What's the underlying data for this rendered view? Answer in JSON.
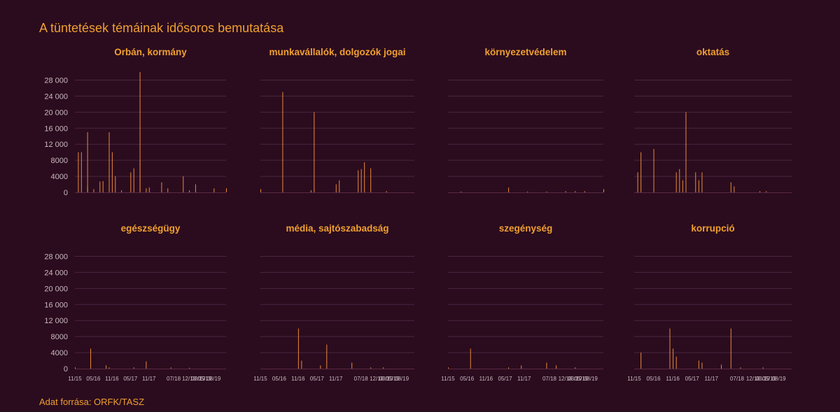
{
  "title": "A tüntetések témáinak idősoros bemutatása",
  "source": "Adat forrása: ORFK/TASZ",
  "colors": {
    "background": "#2b0c1e",
    "accent": "#f0a030",
    "bar": "#e8893a",
    "grid": "#4a2540",
    "tick": "#c8b8c0"
  },
  "chart_data": {
    "type": "bar",
    "y_ticks": [
      "0",
      "4000",
      "8000",
      "12 000",
      "16 000",
      "20 000",
      "24 000",
      "28 000"
    ],
    "y_tick_values": [
      0,
      4000,
      8000,
      12000,
      16000,
      20000,
      24000,
      28000
    ],
    "ylim": [
      0,
      30000
    ],
    "x_range": [
      "2015-11",
      "2019-12"
    ],
    "x_ticks": [
      {
        "label": "11/15",
        "date": "2015-11"
      },
      {
        "label": "05/16",
        "date": "2016-05"
      },
      {
        "label": "11/16",
        "date": "2016-11"
      },
      {
        "label": "05/17",
        "date": "2017-05"
      },
      {
        "label": "11/17",
        "date": "2017-11"
      },
      {
        "label": "07/18",
        "date": "2018-07"
      },
      {
        "label": "12/18",
        "date": "2018-12"
      },
      {
        "label": "03/19",
        "date": "2019-03"
      },
      {
        "label": "05/19",
        "date": "2019-05"
      },
      {
        "label": "08/19",
        "date": "2019-08"
      }
    ],
    "grid": true,
    "panels": [
      {
        "title": "Orbán, kormány",
        "points": [
          [
            "2015-12",
            10000
          ],
          [
            "2016-01",
            10000
          ],
          [
            "2016-03",
            15000
          ],
          [
            "2016-03",
            1500
          ],
          [
            "2016-05",
            800
          ],
          [
            "2016-07",
            2700
          ],
          [
            "2016-08",
            2800
          ],
          [
            "2016-10",
            10200
          ],
          [
            "2016-10",
            15000
          ],
          [
            "2016-11",
            10000
          ],
          [
            "2016-12",
            4000
          ],
          [
            "2017-02",
            500
          ],
          [
            "2017-05",
            5000
          ],
          [
            "2017-06",
            6000
          ],
          [
            "2017-08",
            8000
          ],
          [
            "2017-08",
            30000
          ],
          [
            "2017-10",
            1000
          ],
          [
            "2017-11",
            1200
          ],
          [
            "2018-03",
            2500
          ],
          [
            "2018-05",
            1000
          ],
          [
            "2018-10",
            4000
          ],
          [
            "2018-12",
            500
          ],
          [
            "2019-02",
            2000
          ],
          [
            "2019-08",
            1000
          ],
          [
            "2019-12",
            1000
          ]
        ]
      },
      {
        "title": "munkavállalók, dolgozók jogai",
        "points": [
          [
            "2015-11",
            800
          ],
          [
            "2016-06",
            25000
          ],
          [
            "2017-03",
            500
          ],
          [
            "2017-04",
            20000
          ],
          [
            "2017-11",
            2000
          ],
          [
            "2017-12",
            3000
          ],
          [
            "2018-06",
            5500
          ],
          [
            "2018-07",
            5800
          ],
          [
            "2018-08",
            7500
          ],
          [
            "2018-10",
            6000
          ],
          [
            "2019-03",
            300
          ]
        ]
      },
      {
        "title": "környezetvédelem",
        "points": [
          [
            "2016-03",
            200
          ],
          [
            "2017-06",
            1200
          ],
          [
            "2017-12",
            200
          ],
          [
            "2018-06",
            200
          ],
          [
            "2018-12",
            300
          ],
          [
            "2019-03",
            300
          ],
          [
            "2019-06",
            300
          ],
          [
            "2019-12",
            800
          ]
        ]
      },
      {
        "title": "oktatás",
        "points": [
          [
            "2015-12",
            5000
          ],
          [
            "2016-01",
            10000
          ],
          [
            "2016-05",
            10800
          ],
          [
            "2016-12",
            5000
          ],
          [
            "2017-01",
            5800
          ],
          [
            "2017-02",
            3000
          ],
          [
            "2017-03",
            20000
          ],
          [
            "2017-06",
            5000
          ],
          [
            "2017-07",
            3000
          ],
          [
            "2017-08",
            5000
          ],
          [
            "2018-05",
            2500
          ],
          [
            "2018-06",
            1500
          ],
          [
            "2019-02",
            300
          ],
          [
            "2019-04",
            300
          ]
        ]
      },
      {
        "title": "egészségügy",
        "points": [
          [
            "2015-11",
            300
          ],
          [
            "2016-04",
            5000
          ],
          [
            "2016-09",
            800
          ],
          [
            "2016-10",
            300
          ],
          [
            "2017-06",
            300
          ],
          [
            "2017-10",
            1800
          ],
          [
            "2018-06",
            300
          ],
          [
            "2018-12",
            200
          ]
        ]
      },
      {
        "title": "média, sajtószabadság",
        "points": [
          [
            "2016-11",
            10000
          ],
          [
            "2016-12",
            2000
          ],
          [
            "2017-06",
            800
          ],
          [
            "2017-08",
            6000
          ],
          [
            "2018-04",
            1500
          ],
          [
            "2018-10",
            300
          ],
          [
            "2019-02",
            300
          ]
        ]
      },
      {
        "title": "szegénység",
        "points": [
          [
            "2015-11",
            300
          ],
          [
            "2016-06",
            5000
          ],
          [
            "2017-06",
            300
          ],
          [
            "2017-10",
            800
          ],
          [
            "2018-06",
            1500
          ],
          [
            "2018-09",
            800
          ],
          [
            "2019-03",
            300
          ]
        ]
      },
      {
        "title": "korrupció",
        "points": [
          [
            "2016-01",
            4000
          ],
          [
            "2016-10",
            10000
          ],
          [
            "2016-11",
            5000
          ],
          [
            "2016-12",
            3000
          ],
          [
            "2017-07",
            2000
          ],
          [
            "2017-08",
            1500
          ],
          [
            "2018-02",
            1000
          ],
          [
            "2018-05",
            10000
          ],
          [
            "2018-08",
            300
          ],
          [
            "2019-03",
            300
          ]
        ]
      }
    ]
  }
}
